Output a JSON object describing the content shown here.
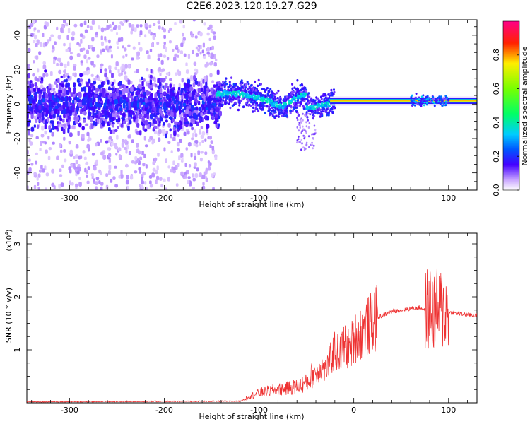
{
  "title": "C2E6.2023.120.19.27.G29",
  "colors": {
    "spectrogram_palette": "rainbow",
    "snr_line": "#ee3333"
  },
  "chart_data": [
    {
      "type": "heatmap",
      "xlabel": "Height of straight line (km)",
      "ylabel": "Frequency (Hz)",
      "xlim": [
        -345,
        130
      ],
      "ylim": [
        -50,
        49
      ],
      "x_ticks": [
        -300,
        -200,
        -100,
        0,
        100
      ],
      "y_ticks": [
        -40,
        -20,
        0,
        20,
        40
      ],
      "colorbar": {
        "label": "Normalized spectral amplitude",
        "range": [
          0.0,
          1.0
        ],
        "ticks": [
          "0.0",
          "0.2",
          "0.4",
          "0.6",
          "0.8"
        ]
      },
      "grid": false
    },
    {
      "type": "line",
      "xlabel": "Height of straight line (km)",
      "ylabel": "SNR (10 * v/v)",
      "y_multiplier": "(x10",
      "y_multiplier_exp": "4",
      "xlim": [
        -345,
        130
      ],
      "ylim": [
        0,
        3.2
      ],
      "x_ticks": [
        -300,
        -200,
        -100,
        0,
        100
      ],
      "y_ticks": [
        1,
        2,
        3
      ],
      "grid": false,
      "series": [
        {
          "x": [
            -345,
            -120,
            -110,
            -100,
            -90,
            -80,
            -70,
            -60,
            -50,
            -40,
            -35,
            -30,
            -25,
            -20,
            -15,
            -10,
            -5,
            0,
            5,
            10,
            15,
            20,
            30,
            40,
            50,
            60,
            70,
            75,
            80,
            85,
            90,
            95,
            100,
            105,
            110,
            120,
            130
          ],
          "y": [
            0.02,
            0.03,
            0.1,
            0.15,
            0.18,
            0.2,
            0.22,
            0.25,
            0.3,
            0.5,
            0.7,
            0.6,
            0.8,
            1.0,
            0.9,
            1.1,
            1.0,
            1.2,
            1.3,
            1.35,
            1.45,
            1.55,
            1.65,
            1.72,
            1.75,
            1.78,
            1.8,
            1.75,
            1.8,
            1.7,
            1.8,
            1.75,
            1.7,
            1.7,
            1.68,
            1.66,
            1.65
          ]
        }
      ]
    }
  ]
}
